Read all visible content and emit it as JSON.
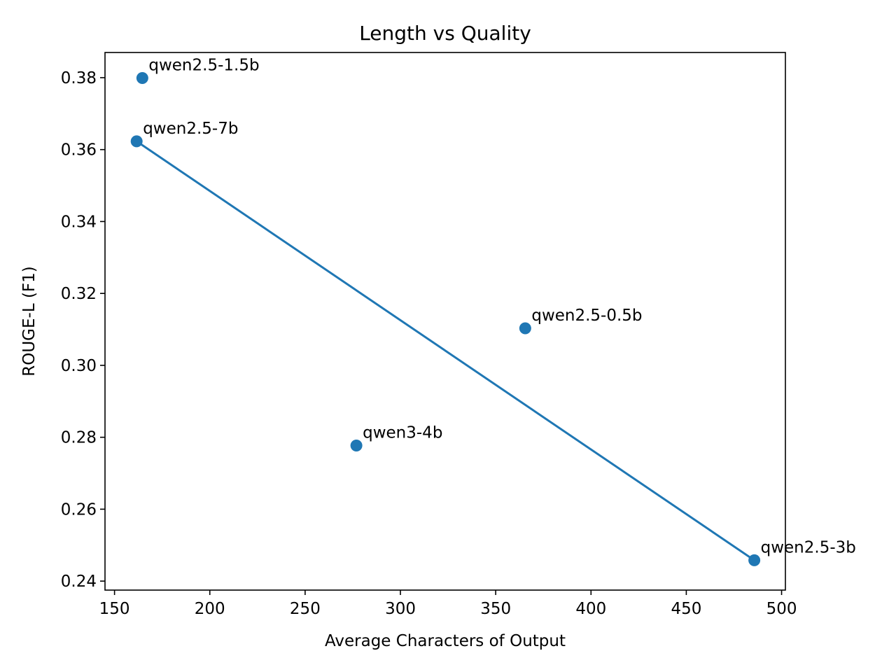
{
  "chart_data": {
    "type": "scatter",
    "title": "Length vs Quality",
    "xlabel": "Average Characters of Output",
    "ylabel": "ROUGE-L (F1)",
    "xlim": [
      145,
      502
    ],
    "ylim": [
      0.2375,
      0.387
    ],
    "xticks": [
      150,
      200,
      250,
      300,
      350,
      400,
      450,
      500
    ],
    "yticks": [
      0.24,
      0.26,
      0.28,
      0.3,
      0.32,
      0.34,
      0.36,
      0.38
    ],
    "ytick_labels": [
      "0.24",
      "0.26",
      "0.28",
      "0.30",
      "0.32",
      "0.34",
      "0.36",
      "0.38"
    ],
    "grid": false,
    "series": [
      {
        "points": [
          {
            "label": "qwen2.5-1.5b",
            "x": 164.6,
            "y": 0.3799
          },
          {
            "label": "qwen2.5-7b",
            "x": 161.6,
            "y": 0.3623
          },
          {
            "label": "qwen2.5-0.5b",
            "x": 365.5,
            "y": 0.3103
          },
          {
            "label": "qwen3-4b",
            "x": 276.9,
            "y": 0.2777
          },
          {
            "label": "qwen2.5-3b",
            "x": 485.7,
            "y": 0.2458
          }
        ],
        "color": "#1f77b4"
      }
    ],
    "trend_line": {
      "x": [
        161.6,
        485.7
      ],
      "y": [
        0.3623,
        0.2458
      ],
      "color": "#1f77b4"
    }
  }
}
